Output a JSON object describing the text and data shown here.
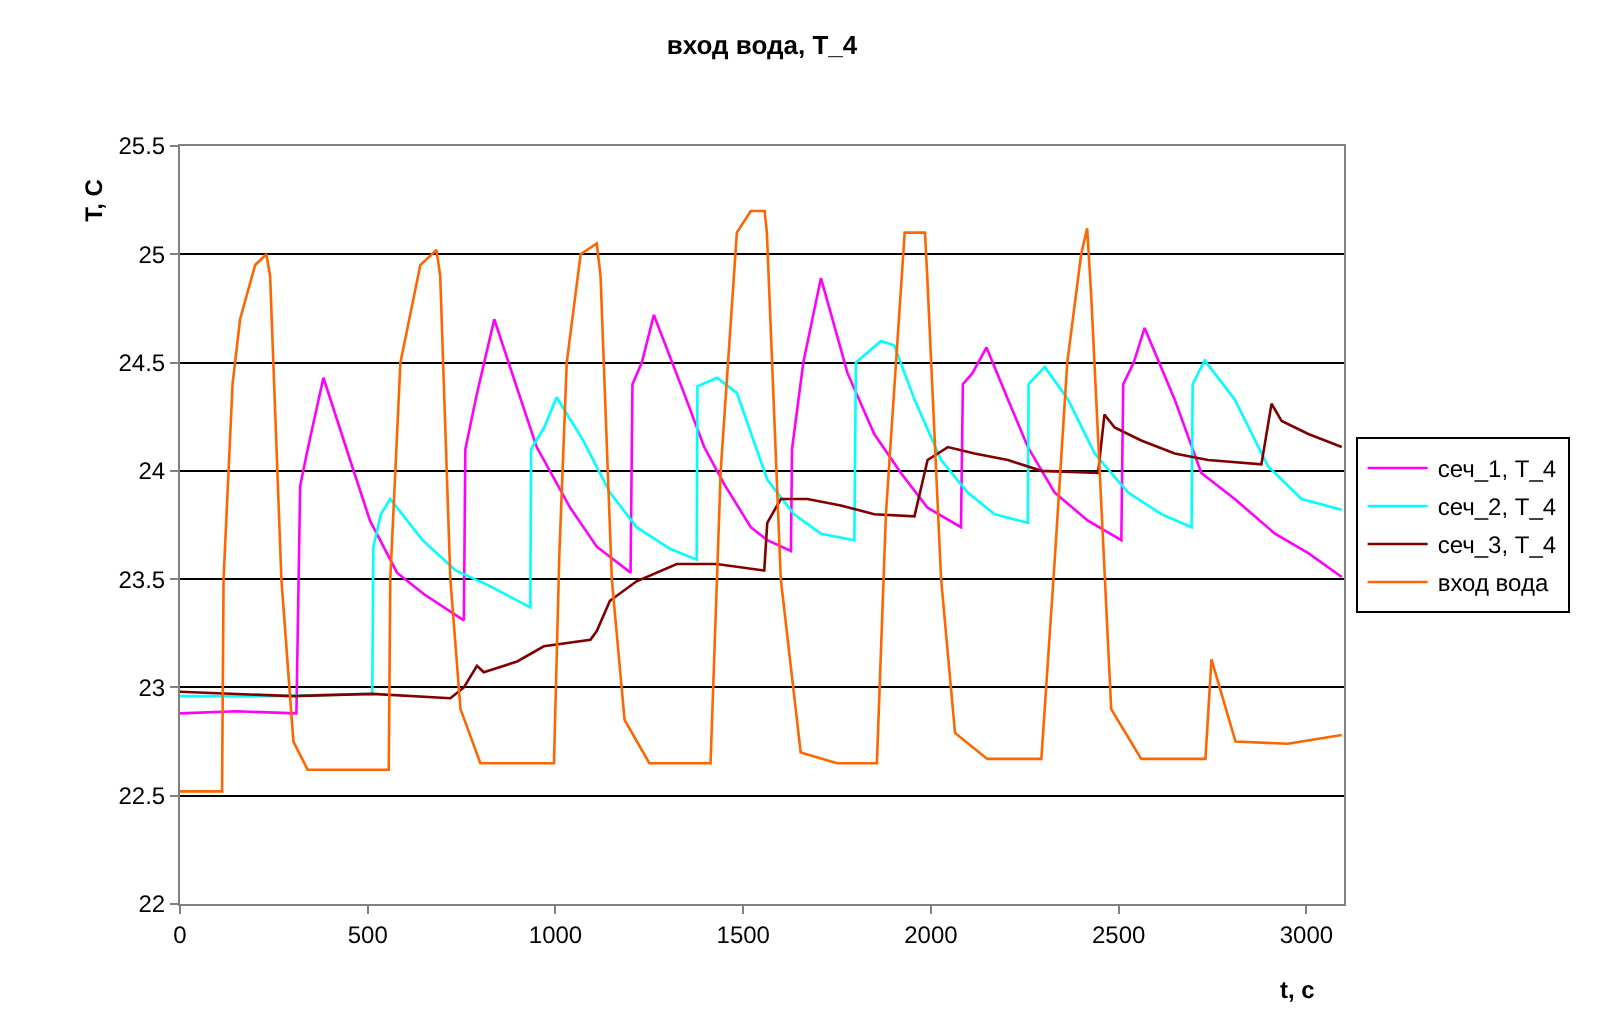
{
  "chart_data": {
    "type": "line",
    "title": "вход вода, T_4",
    "xlabel": "t, c",
    "ylabel": "T, C",
    "xlim": [
      0,
      3100
    ],
    "xticks": [
      0,
      500,
      1000,
      1500,
      2000,
      2500,
      3000
    ],
    "ylim": [
      22,
      25.5
    ],
    "yticks": [
      22,
      22.5,
      23,
      23.5,
      24,
      24.5,
      25,
      25.5
    ],
    "grid": "y",
    "legend": "right",
    "marker": "none",
    "line_style": "solid",
    "series": [
      {
        "name": "сеч_1, T_4",
        "color": "#ff00ff",
        "x": [
          0,
          150,
          310,
          320,
          340,
          382,
          453,
          506,
          578,
          650,
          756,
          760,
          790,
          837,
          896,
          950,
          1039,
          1110,
          1200,
          1205,
          1230,
          1262,
          1342,
          1396,
          1449,
          1520,
          1564,
          1627,
          1630,
          1660,
          1707,
          1778,
          1849,
          1920,
          1991,
          2080,
          2085,
          2110,
          2148,
          2205,
          2258,
          2329,
          2418,
          2507,
          2512,
          2540,
          2569,
          2649,
          2720,
          2809,
          2916,
          3005,
          3094
        ],
        "values": [
          22.88,
          22.89,
          22.88,
          23.93,
          24.1,
          24.43,
          24.05,
          23.77,
          23.53,
          23.43,
          23.31,
          24.1,
          24.35,
          24.7,
          24.39,
          24.11,
          23.83,
          23.65,
          23.53,
          24.4,
          24.5,
          24.72,
          24.36,
          24.11,
          23.94,
          23.74,
          23.68,
          23.63,
          24.1,
          24.5,
          24.89,
          24.45,
          24.17,
          23.99,
          23.83,
          23.74,
          24.4,
          24.45,
          24.57,
          24.33,
          24.11,
          23.9,
          23.77,
          23.68,
          24.4,
          24.5,
          24.66,
          24.33,
          23.99,
          23.87,
          23.71,
          23.62,
          23.51
        ]
      },
      {
        "name": "сеч_2, T_4",
        "color": "#00ffff",
        "x": [
          0,
          250,
          512,
          515,
          535,
          560,
          646,
          734,
          823,
          933,
          935,
          970,
          1003,
          1074,
          1145,
          1216,
          1305,
          1376,
          1378,
          1430,
          1483,
          1564,
          1635,
          1707,
          1796,
          1800,
          1867,
          1902,
          1956,
          2027,
          2098,
          2169,
          2258,
          2260,
          2303,
          2365,
          2436,
          2525,
          2614,
          2694,
          2697,
          2729,
          2809,
          2898,
          2987,
          3094
        ],
        "values": [
          22.96,
          22.96,
          22.97,
          23.65,
          23.8,
          23.87,
          23.68,
          23.54,
          23.47,
          23.37,
          24.1,
          24.2,
          24.34,
          24.14,
          23.9,
          23.74,
          23.64,
          23.59,
          24.39,
          24.43,
          24.36,
          23.96,
          23.8,
          23.71,
          23.68,
          24.5,
          24.6,
          24.58,
          24.33,
          24.05,
          23.9,
          23.8,
          23.76,
          24.4,
          24.48,
          24.33,
          24.08,
          23.9,
          23.8,
          23.74,
          24.4,
          24.51,
          24.33,
          24.02,
          23.87,
          23.82
        ]
      },
      {
        "name": "сеч_3, T_4",
        "color": "#800000",
        "x": [
          0,
          300,
          512,
          720,
          756,
          791,
          809,
          898,
          969,
          1093,
          1110,
          1145,
          1216,
          1323,
          1429,
          1556,
          1564,
          1600,
          1671,
          1760,
          1849,
          1956,
          1991,
          2045,
          2116,
          2205,
          2294,
          2445,
          2462,
          2489,
          2560,
          2649,
          2738,
          2880,
          2907,
          2934,
          3005,
          3094
        ],
        "values": [
          22.98,
          22.96,
          22.97,
          22.95,
          23.0,
          23.1,
          23.07,
          23.12,
          23.19,
          23.22,
          23.26,
          23.4,
          23.49,
          23.57,
          23.57,
          23.54,
          23.76,
          23.87,
          23.87,
          23.84,
          23.8,
          23.79,
          24.05,
          24.11,
          24.08,
          24.05,
          24.0,
          23.99,
          24.26,
          24.2,
          24.14,
          24.08,
          24.05,
          24.03,
          24.31,
          24.23,
          24.17,
          24.11
        ]
      },
      {
        "name": "вход вода",
        "color": "#ff6600",
        "x": [
          0,
          112,
          116,
          140,
          160,
          200,
          230,
          240,
          270,
          302,
          340,
          450,
          556,
          560,
          587,
          640,
          683,
          693,
          720,
          747,
          800,
          900,
          996,
          1010,
          1030,
          1067,
          1110,
          1120,
          1150,
          1184,
          1250,
          1350,
          1413,
          1440,
          1483,
          1520,
          1557,
          1563,
          1600,
          1653,
          1750,
          1856,
          1880,
          1930,
          1984,
          1990,
          2027,
          2064,
          2150,
          2294,
          2330,
          2363,
          2400,
          2416,
          2427,
          2480,
          2560,
          2650,
          2731,
          2747,
          2811,
          2950,
          3094
        ],
        "values": [
          22.52,
          22.52,
          23.5,
          24.4,
          24.7,
          24.95,
          25.0,
          24.9,
          23.5,
          22.75,
          22.62,
          22.62,
          22.62,
          23.5,
          24.5,
          24.95,
          25.02,
          24.9,
          23.5,
          22.9,
          22.65,
          22.65,
          22.65,
          23.6,
          24.5,
          25.0,
          25.05,
          24.9,
          23.5,
          22.85,
          22.65,
          22.65,
          22.65,
          24.0,
          25.1,
          25.2,
          25.2,
          25.1,
          23.5,
          22.7,
          22.65,
          22.65,
          23.8,
          25.1,
          25.1,
          24.9,
          23.5,
          22.79,
          22.67,
          22.67,
          23.6,
          24.5,
          25.0,
          25.12,
          24.8,
          22.9,
          22.67,
          22.67,
          22.67,
          23.13,
          22.75,
          22.74,
          22.78
        ]
      }
    ]
  }
}
